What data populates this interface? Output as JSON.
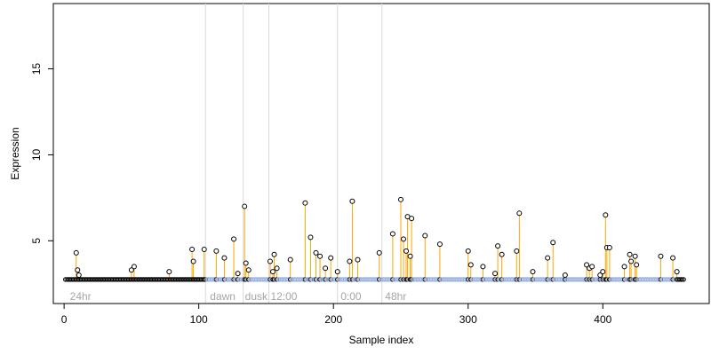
{
  "chart_data": {
    "type": "scatter",
    "title": "",
    "xlabel": "Sample index",
    "ylabel": "Expression",
    "xlim": [
      -8,
      479
    ],
    "ylim": [
      1.35,
      18.8
    ],
    "x_ticks": [
      0,
      100,
      200,
      300,
      400
    ],
    "y_ticks": [
      5,
      10,
      15
    ],
    "grid": false,
    "n_samples": 460,
    "baseline": 2.75,
    "region_boundaries": [
      105,
      133,
      152,
      203,
      236
    ],
    "region_labels": [
      {
        "x": 3,
        "label": "24hr"
      },
      {
        "x": 107,
        "label": "dawn"
      },
      {
        "x": 133,
        "label": "dusk"
      },
      {
        "x": 152,
        "label": "12:00"
      },
      {
        "x": 204,
        "label": "0:00"
      },
      {
        "x": 237,
        "label": "48hr"
      }
    ],
    "series": [
      {
        "values_points": [
          [
            9,
            4.3
          ],
          [
            10,
            3.3
          ],
          [
            11,
            3.0
          ],
          [
            50,
            3.3
          ],
          [
            52,
            3.5
          ],
          [
            78,
            3.2
          ],
          [
            95,
            4.5
          ],
          [
            96,
            3.8
          ],
          [
            104,
            4.5
          ],
          [
            113,
            4.4
          ],
          [
            119,
            4.0
          ],
          [
            126,
            5.1
          ],
          [
            129,
            3.1
          ],
          [
            134,
            7.0
          ],
          [
            135,
            3.7
          ],
          [
            137,
            3.3
          ],
          [
            153,
            3.8
          ],
          [
            155,
            3.2
          ],
          [
            156,
            4.2
          ],
          [
            158,
            3.4
          ],
          [
            168,
            3.9
          ],
          [
            179,
            7.2
          ],
          [
            183,
            5.2
          ],
          [
            187,
            4.3
          ],
          [
            190,
            4.1
          ],
          [
            194,
            3.4
          ],
          [
            198,
            4.0
          ],
          [
            203,
            3.2
          ],
          [
            212,
            3.8
          ],
          [
            214,
            7.3
          ],
          [
            218,
            3.9
          ],
          [
            234,
            4.3
          ],
          [
            244,
            5.4
          ],
          [
            250,
            7.4
          ],
          [
            252,
            5.1
          ],
          [
            254,
            4.4
          ],
          [
            255,
            6.4
          ],
          [
            257,
            4.1
          ],
          [
            258,
            6.3
          ],
          [
            268,
            5.3
          ],
          [
            279,
            4.8
          ],
          [
            300,
            4.4
          ],
          [
            302,
            3.6
          ],
          [
            311,
            3.5
          ],
          [
            320,
            3.1
          ],
          [
            322,
            4.7
          ],
          [
            325,
            4.2
          ],
          [
            336,
            4.4
          ],
          [
            338,
            6.6
          ],
          [
            348,
            3.2
          ],
          [
            359,
            4.0
          ],
          [
            363,
            4.9
          ],
          [
            372,
            3.0
          ],
          [
            388,
            3.6
          ],
          [
            390,
            3.4
          ],
          [
            392,
            3.5
          ],
          [
            398,
            3.0
          ],
          [
            400,
            3.2
          ],
          [
            402,
            6.5
          ],
          [
            403,
            4.6
          ],
          [
            405,
            4.6
          ],
          [
            416,
            3.5
          ],
          [
            420,
            4.2
          ],
          [
            421,
            3.8
          ],
          [
            424,
            4.1
          ],
          [
            425,
            3.6
          ],
          [
            443,
            4.1
          ],
          [
            452,
            4.0
          ],
          [
            455,
            3.2
          ]
        ]
      }
    ]
  },
  "colors": {
    "stem": "#ffa500",
    "baseline_marker": "#9bb3e0",
    "point_stroke": "#000000",
    "region_line": "#d9d9d9",
    "region_text": "#a6a6a6"
  }
}
